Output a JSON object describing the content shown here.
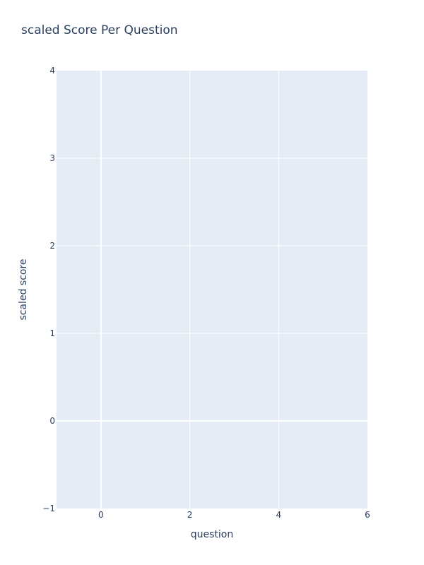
{
  "chart_data": {
    "type": "scatter",
    "title": "scaled Score Per Question",
    "xlabel": "question",
    "ylabel": "scaled score",
    "xlim": [
      -1,
      6
    ],
    "ylim": [
      -1,
      4
    ],
    "x_ticks": [
      0,
      2,
      4,
      6
    ],
    "y_ticks": [
      -1,
      0,
      1,
      2,
      3,
      4
    ],
    "x_tick_labels": [
      "0",
      "2",
      "4",
      "6"
    ],
    "y_tick_labels": [
      "−1",
      "0",
      "1",
      "2",
      "3",
      "4"
    ],
    "grid": true,
    "series": []
  },
  "colors": {
    "plot_background": "#e5ecf6",
    "grid": "#ffffff",
    "text": "#2a3f5f"
  }
}
